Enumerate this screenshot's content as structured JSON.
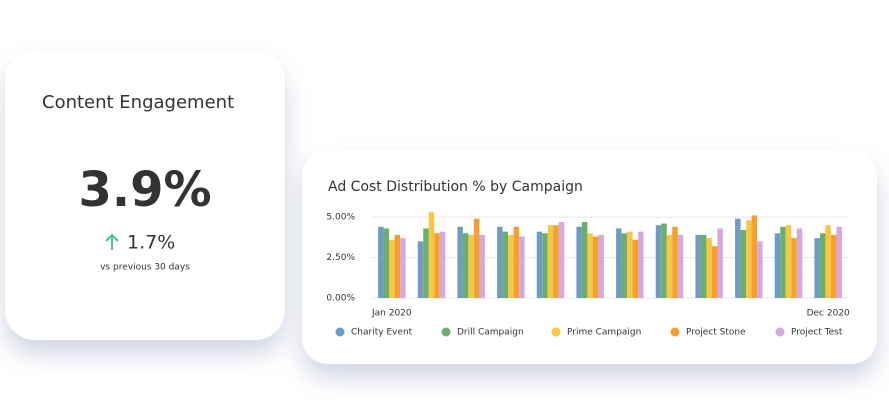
{
  "kpi": {
    "title": "Content Engagement",
    "value": "3.9%",
    "change": "1.7%",
    "caption": "vs previous 30 days"
  },
  "chart_data": {
    "type": "bar",
    "title": "Ad Cost Distribution % by Campaign",
    "categories": [
      "Jan 2020",
      null,
      null,
      null,
      null,
      null,
      null,
      null,
      null,
      null,
      null,
      "Dec 2020"
    ],
    "series": [
      {
        "name": "Charity Event",
        "color": "#6f9cc4",
        "values": [
          4.4,
          3.5,
          4.4,
          4.4,
          4.1,
          4.4,
          4.3,
          4.5,
          3.9,
          4.9,
          4.0,
          3.7
        ]
      },
      {
        "name": "Drill Campaign",
        "color": "#6cae6c",
        "values": [
          4.3,
          4.3,
          4.0,
          4.1,
          4.0,
          4.7,
          4.0,
          4.6,
          3.9,
          4.2,
          4.4,
          4.0
        ]
      },
      {
        "name": "Prime Campaign",
        "color": "#f6c744",
        "values": [
          3.6,
          5.3,
          3.9,
          3.9,
          4.5,
          4.0,
          4.1,
          3.9,
          3.7,
          4.8,
          4.5,
          4.5
        ]
      },
      {
        "name": "Project Stone",
        "color": "#f59f2c",
        "values": [
          3.9,
          4.0,
          4.9,
          4.4,
          4.5,
          3.8,
          3.6,
          4.4,
          3.2,
          5.1,
          3.7,
          3.9
        ]
      },
      {
        "name": "Project Test",
        "color": "#d6a8e2",
        "values": [
          3.7,
          4.1,
          3.9,
          3.8,
          4.7,
          3.9,
          4.1,
          3.9,
          4.3,
          3.5,
          4.3,
          4.4
        ]
      }
    ],
    "ylim": [
      0,
      5.5
    ],
    "yticks": [
      {
        "value": 0,
        "label": "0.00%"
      },
      {
        "value": 2.5,
        "label": "2.50%"
      },
      {
        "value": 5,
        "label": "5.00%"
      }
    ],
    "grid": true
  }
}
